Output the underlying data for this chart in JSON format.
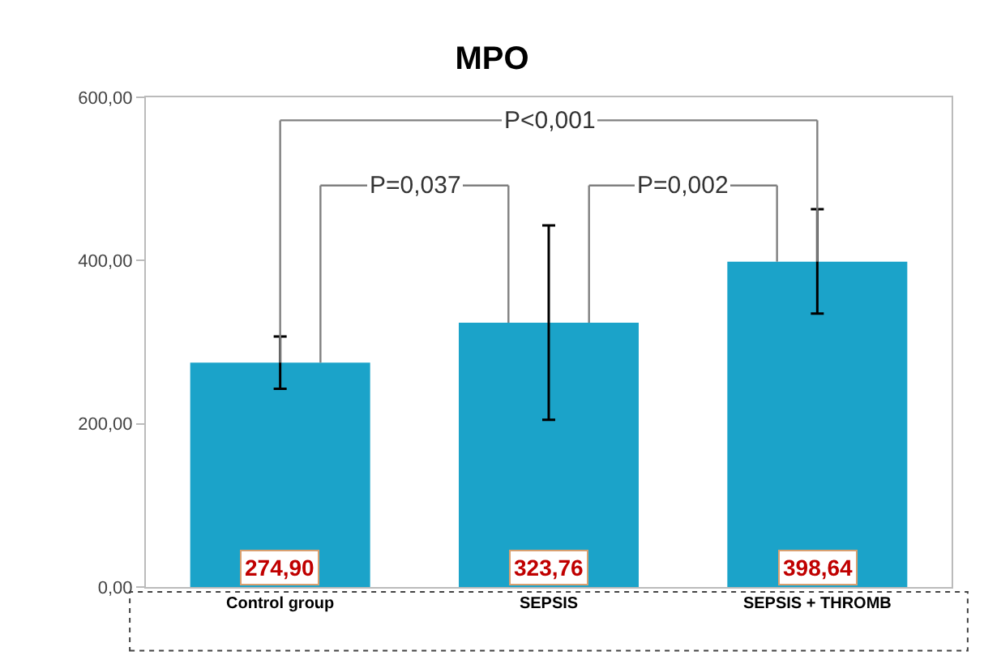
{
  "chart_data": {
    "type": "bar",
    "title": "MPO",
    "categories": [
      "Control group",
      "SEPSIS",
      "SEPSIS + THROMB"
    ],
    "values": [
      274.9,
      323.76,
      398.64
    ],
    "errors": [
      [
        243,
        307
      ],
      [
        205,
        443
      ],
      [
        335,
        463
      ]
    ],
    "value_labels": [
      "274,90",
      "323,76",
      "398,64"
    ],
    "color": "#1ba3c9",
    "ylim": [
      0,
      600
    ],
    "yticks": [
      {
        "value": 0,
        "label": "0,00"
      },
      {
        "value": 200,
        "label": "200,00"
      },
      {
        "value": 400,
        "label": "400,00"
      },
      {
        "value": 600,
        "label": "600,00"
      }
    ],
    "annotations": [
      "P=0,037",
      "P=0,002",
      "P<0,001"
    ],
    "grid": false,
    "legend": false
  }
}
